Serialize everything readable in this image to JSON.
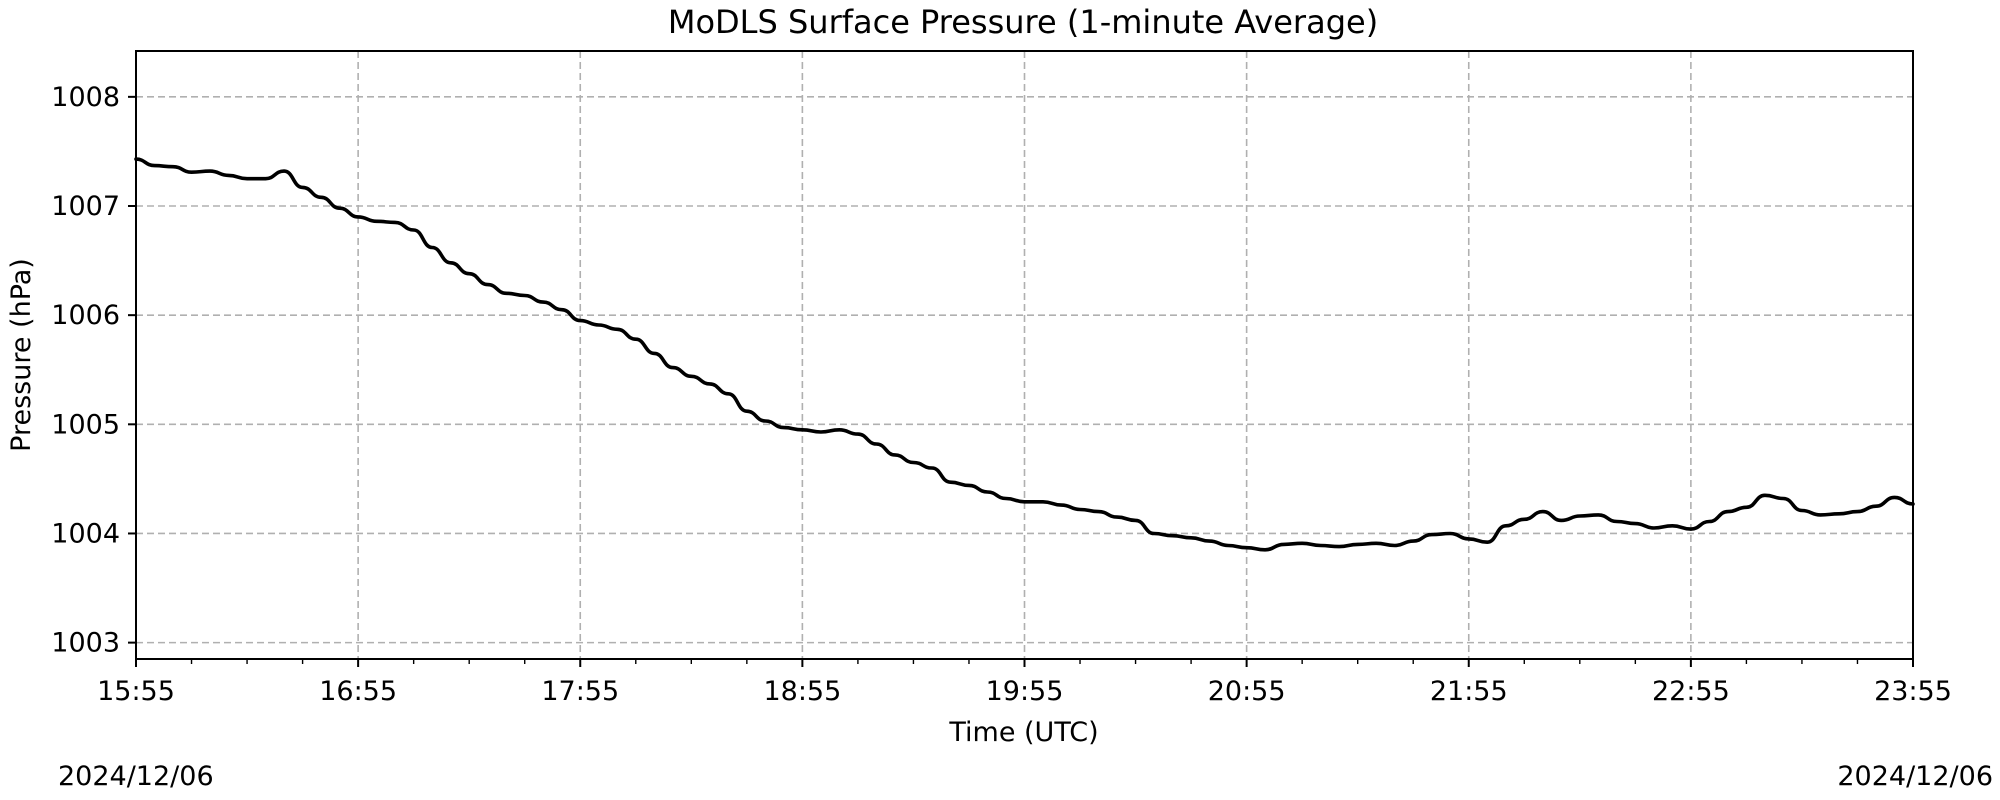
{
  "chart_data": {
    "type": "line",
    "title": "MoDLS Surface Pressure (1-minute Average)",
    "xlabel": "Time (UTC)",
    "ylabel": "Pressure (hPa)",
    "x_tick_labels": [
      "15:55",
      "16:55",
      "17:55",
      "18:55",
      "19:55",
      "20:55",
      "21:55",
      "22:55",
      "23:55"
    ],
    "x_minor_tick_interval_minutes": 15,
    "y_ticks": [
      1003,
      1004,
      1005,
      1006,
      1007,
      1008
    ],
    "ylim": [
      1002.85,
      1008.42
    ],
    "xlim": [
      "2024-12-06 15:55",
      "2024-12-06 23:55"
    ],
    "grid": true,
    "date_labels": {
      "left": "2024/12/06",
      "right": "2024/12/06"
    },
    "colors": {
      "line": "#000000",
      "grid": "#b0b0b0"
    },
    "series": [
      {
        "x": [
          "15:55",
          "16:00",
          "16:05",
          "16:10",
          "16:15",
          "16:20",
          "16:25",
          "16:30",
          "16:35",
          "16:40",
          "16:45",
          "16:50",
          "16:55",
          "17:00",
          "17:05",
          "17:10",
          "17:15",
          "17:20",
          "17:25",
          "17:30",
          "17:35",
          "17:40",
          "17:45",
          "17:50",
          "17:55",
          "18:00",
          "18:05",
          "18:10",
          "18:15",
          "18:20",
          "18:25",
          "18:30",
          "18:35",
          "18:40",
          "18:45",
          "18:50",
          "18:55",
          "19:00",
          "19:05",
          "19:10",
          "19:15",
          "19:20",
          "19:25",
          "19:30",
          "19:35",
          "19:40",
          "19:45",
          "19:50",
          "19:55",
          "20:00",
          "20:05",
          "20:10",
          "20:15",
          "20:20",
          "20:25",
          "20:30",
          "20:35",
          "20:40",
          "20:45",
          "20:50",
          "20:55",
          "21:00",
          "21:05",
          "21:10",
          "21:15",
          "21:20",
          "21:25",
          "21:30",
          "21:35",
          "21:40",
          "21:45",
          "21:50",
          "21:55",
          "22:00",
          "22:05",
          "22:10",
          "22:15",
          "22:20",
          "22:25",
          "22:30",
          "22:35",
          "22:40",
          "22:45",
          "22:50",
          "22:55",
          "23:00",
          "23:05",
          "23:10",
          "23:15",
          "23:20",
          "23:25",
          "23:30",
          "23:35",
          "23:40",
          "23:45",
          "23:50",
          "23:55"
        ],
        "y": [
          1007.43,
          1007.37,
          1007.36,
          1007.31,
          1007.32,
          1007.28,
          1007.25,
          1007.25,
          1007.32,
          1007.17,
          1007.08,
          1006.98,
          1006.9,
          1006.86,
          1006.85,
          1006.78,
          1006.62,
          1006.48,
          1006.38,
          1006.28,
          1006.2,
          1006.18,
          1006.12,
          1006.05,
          1005.95,
          1005.91,
          1005.87,
          1005.78,
          1005.65,
          1005.52,
          1005.44,
          1005.37,
          1005.28,
          1005.12,
          1005.03,
          1004.97,
          1004.95,
          1004.93,
          1004.95,
          1004.91,
          1004.82,
          1004.72,
          1004.65,
          1004.6,
          1004.47,
          1004.44,
          1004.38,
          1004.32,
          1004.29,
          1004.29,
          1004.26,
          1004.22,
          1004.2,
          1004.15,
          1004.12,
          1004.0,
          1003.98,
          1003.96,
          1003.93,
          1003.89,
          1003.87,
          1003.85,
          1003.9,
          1003.91,
          1003.89,
          1003.88,
          1003.9,
          1003.91,
          1003.89,
          1003.93,
          1003.99,
          1004.0,
          1003.95,
          1003.92,
          1004.07,
          1004.13,
          1004.2,
          1004.12,
          1004.16,
          1004.17,
          1004.11,
          1004.09,
          1004.05,
          1004.07,
          1004.04,
          1004.11,
          1004.2,
          1004.24,
          1004.35,
          1004.32,
          1004.21,
          1004.17,
          1004.18,
          1004.2,
          1004.25,
          1004.33,
          1004.27
        ]
      }
    ]
  }
}
